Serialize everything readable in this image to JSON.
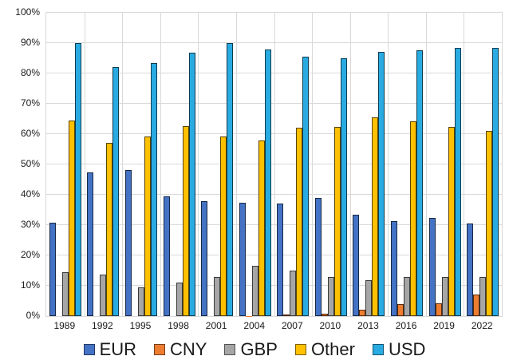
{
  "chart_data": {
    "type": "bar",
    "title": "",
    "xlabel": "",
    "ylabel": "",
    "categories": [
      "1989",
      "1992",
      "1995",
      "1998",
      "2001",
      "2004",
      "2007",
      "2010",
      "2013",
      "2016",
      "2019",
      "2022"
    ],
    "series": [
      {
        "name": "EUR",
        "color": "#4472C4",
        "values": [
          30.8,
          47.3,
          48.2,
          39.5,
          37.9,
          37.4,
          37.0,
          39.0,
          33.4,
          31.4,
          32.3,
          30.5
        ]
      },
      {
        "name": "CNY",
        "color": "#ED7D31",
        "values": [
          0.0,
          0.0,
          0.0,
          0.0,
          0.0,
          0.1,
          0.5,
          0.9,
          2.2,
          4.0,
          4.3,
          7.0
        ]
      },
      {
        "name": "GBP",
        "color": "#A6A6A6",
        "values": [
          14.6,
          13.6,
          9.4,
          11.0,
          13.0,
          16.5,
          14.9,
          12.9,
          11.8,
          12.8,
          12.8,
          12.9
        ]
      },
      {
        "name": "Other",
        "color": "#FFC000",
        "values": [
          64.6,
          57.1,
          59.1,
          62.7,
          59.2,
          58.0,
          62.0,
          62.3,
          65.6,
          64.2,
          62.3,
          61.1
        ]
      },
      {
        "name": "USD",
        "color": "#29ABE2",
        "values": [
          90.0,
          82.0,
          83.3,
          86.8,
          89.9,
          88.0,
          85.6,
          84.9,
          87.0,
          87.6,
          88.3,
          88.5
        ]
      }
    ],
    "ylim": [
      0,
      100
    ],
    "y_ticks": [
      "0%",
      "10%",
      "20%",
      "30%",
      "40%",
      "50%",
      "60%",
      "70%",
      "80%",
      "90%",
      "100%"
    ],
    "grid": true,
    "legend_position": "bottom"
  },
  "styles": {
    "grid_color": "#D9D9D9",
    "bar_border_color": "rgba(0,0,0,0.65)",
    "text_color": "#1a1a1a",
    "background_color": "#FFFFFF"
  }
}
